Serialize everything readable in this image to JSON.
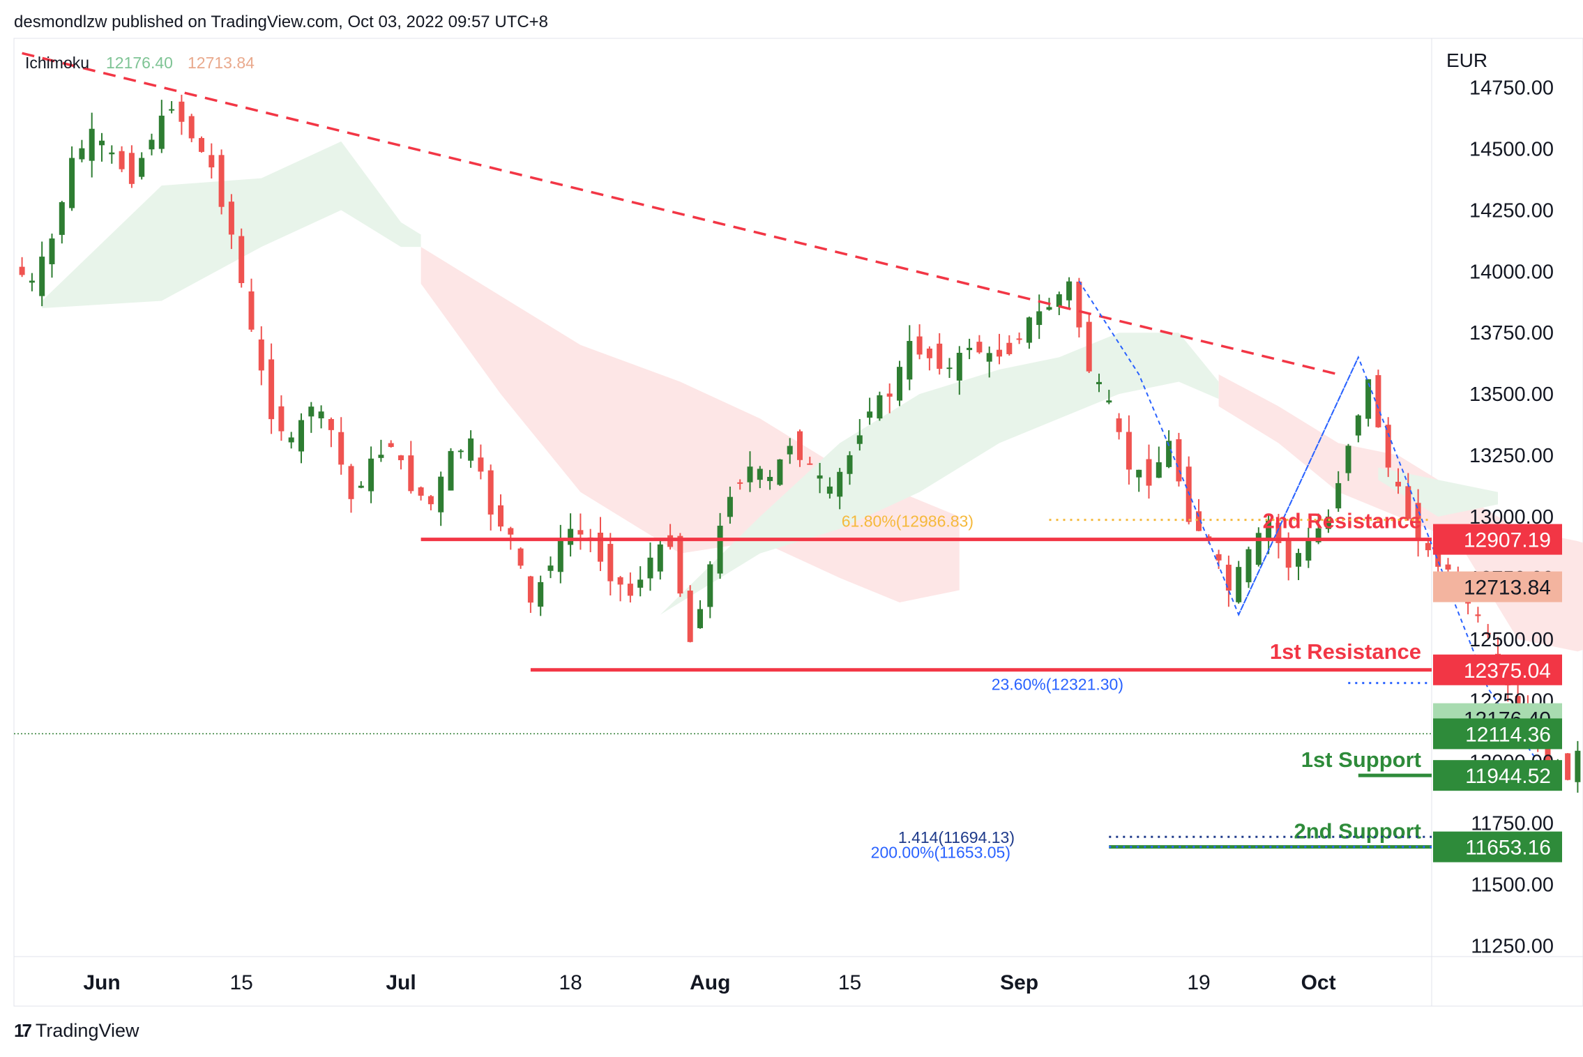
{
  "header": {
    "published_text": "desmondlzw published on TradingView.com, Oct 03, 2022 09:57 UTC+8"
  },
  "footer": {
    "brand": "TradingView",
    "logo_glyph": "17"
  },
  "indicator": {
    "name": "Ichimoku",
    "value1": "12176.40",
    "value2": "12713.84"
  },
  "colors": {
    "up": "#2e7d32",
    "down": "#ef5350",
    "resistance": "#f23645",
    "support": "#2e8b3a",
    "fib_blue": "#2962ff",
    "fib_orange": "#f5b93c",
    "cloud_green": "#e8f4ea",
    "cloud_red": "#fde6e6"
  },
  "chart_data": {
    "type": "candlestick",
    "currency": "EUR",
    "y_ticks": [
      "14750.00",
      "14500.00",
      "14250.00",
      "14000.00",
      "13750.00",
      "13500.00",
      "13250.00",
      "13000.00",
      "12750.00",
      "12500.00",
      "12250.00",
      "12000.00",
      "11750.00",
      "11500.00",
      "11250.00"
    ],
    "x_ticks": [
      {
        "label": "Jun",
        "day": 0,
        "bold": true
      },
      {
        "label": "15",
        "day": 14,
        "bold": false
      },
      {
        "label": "Jul",
        "day": 30,
        "bold": true
      },
      {
        "label": "18",
        "day": 47,
        "bold": false
      },
      {
        "label": "Aug",
        "day": 61,
        "bold": true
      },
      {
        "label": "15",
        "day": 75,
        "bold": false
      },
      {
        "label": "Sep",
        "day": 92,
        "bold": true
      },
      {
        "label": "19",
        "day": 110,
        "bold": false
      },
      {
        "label": "Oct",
        "day": 122,
        "bold": true
      }
    ],
    "price_tags": [
      {
        "value": "12907.19",
        "price": 12907.19,
        "bg": "#f23645",
        "fg": "#ffffff"
      },
      {
        "value": "12713.84",
        "price": 12713.84,
        "bg": "#f3b49f",
        "fg": "#131722"
      },
      {
        "value": "12375.04",
        "price": 12375.04,
        "bg": "#f23645",
        "fg": "#ffffff"
      },
      {
        "value": "12176.40",
        "price": 12176.4,
        "bg": "#a8dbb0",
        "fg": "#131722"
      },
      {
        "value": "12114.36",
        "price": 12114.36,
        "bg": "#2e8b3a",
        "fg": "#ffffff"
      },
      {
        "value": "11944.52",
        "price": 11944.52,
        "bg": "#2e8b3a",
        "fg": "#ffffff"
      },
      {
        "value": "11653.16",
        "price": 11653.16,
        "bg": "#2e8b3a",
        "fg": "#ffffff"
      }
    ],
    "levels": [
      {
        "name": "2nd Resistance",
        "price": 12907.19,
        "start_day": 32,
        "color": "#f23645"
      },
      {
        "name": "1st Resistance",
        "price": 12375.04,
        "start_day": 43,
        "color": "#f23645"
      },
      {
        "name": "1st Support",
        "price": 11944.52,
        "start_day": 126,
        "color": "#2e8b3a"
      },
      {
        "name": "2nd Support",
        "price": 11653.16,
        "start_day": 101,
        "color": "#2e8b3a"
      }
    ],
    "fib_lines": [
      {
        "label": "61.80%(12986.83)",
        "price": 12986.83,
        "start_day": 95,
        "color": "#f5b93c"
      },
      {
        "label": "23.60%(12321.30)",
        "price": 12321.3,
        "start_day": 111,
        "color": "#2962ff"
      },
      {
        "label": "1.414(11694.13)",
        "price": 11694.13,
        "start_day": 101,
        "color": "#1e3a8a"
      },
      {
        "label": "200.00%(11653.05)",
        "price": 11653.05,
        "start_day": 101,
        "color": "#2962ff"
      }
    ],
    "trendline": {
      "start": {
        "day": -8,
        "price": 14890
      },
      "end": {
        "day": 124,
        "price": 13580
      }
    },
    "last_close": 12114.36,
    "ohlc_path": [
      [
        -8,
        14020
      ],
      [
        -6,
        13950
      ],
      [
        -4,
        14130
      ],
      [
        -2,
        14450
      ],
      [
        0,
        14560
      ],
      [
        2,
        14470
      ],
      [
        4,
        14380
      ],
      [
        6,
        14550
      ],
      [
        8,
        14680
      ],
      [
        10,
        14550
      ],
      [
        12,
        14420
      ],
      [
        14,
        14150
      ],
      [
        16,
        13750
      ],
      [
        18,
        13420
      ],
      [
        20,
        13300
      ],
      [
        22,
        13460
      ],
      [
        24,
        13350
      ],
      [
        26,
        13070
      ],
      [
        28,
        13220
      ],
      [
        30,
        13300
      ],
      [
        32,
        13120
      ],
      [
        34,
        13050
      ],
      [
        36,
        13250
      ],
      [
        38,
        13300
      ],
      [
        40,
        13020
      ],
      [
        42,
        12920
      ],
      [
        44,
        12640
      ],
      [
        46,
        12820
      ],
      [
        48,
        12950
      ],
      [
        50,
        12900
      ],
      [
        52,
        12760
      ],
      [
        54,
        12680
      ],
      [
        56,
        12830
      ],
      [
        58,
        12900
      ],
      [
        60,
        12490
      ],
      [
        62,
        12800
      ],
      [
        64,
        13100
      ],
      [
        66,
        13200
      ],
      [
        68,
        13150
      ],
      [
        70,
        13300
      ],
      [
        72,
        13200
      ],
      [
        74,
        13100
      ],
      [
        76,
        13250
      ],
      [
        78,
        13450
      ],
      [
        80,
        13500
      ],
      [
        82,
        13700
      ],
      [
        84,
        13650
      ],
      [
        86,
        13600
      ],
      [
        88,
        13700
      ],
      [
        90,
        13650
      ],
      [
        92,
        13680
      ],
      [
        94,
        13800
      ],
      [
        96,
        13860
      ],
      [
        98,
        13950
      ],
      [
        100,
        13600
      ],
      [
        102,
        13450
      ],
      [
        104,
        13200
      ],
      [
        106,
        13150
      ],
      [
        108,
        13300
      ],
      [
        110,
        13000
      ],
      [
        112,
        12900
      ],
      [
        114,
        12700
      ],
      [
        116,
        12850
      ],
      [
        118,
        12980
      ],
      [
        120,
        12800
      ],
      [
        122,
        12900
      ],
      [
        124,
        13000
      ],
      [
        126,
        13300
      ],
      [
        128,
        13550
      ],
      [
        130,
        13200
      ],
      [
        132,
        13000
      ],
      [
        134,
        12850
      ],
      [
        136,
        12780
      ],
      [
        138,
        12650
      ],
      [
        140,
        12500
      ],
      [
        142,
        12300
      ],
      [
        144,
        12150
      ],
      [
        146,
        12000
      ],
      [
        148,
        11950
      ],
      [
        150,
        12114
      ]
    ]
  }
}
